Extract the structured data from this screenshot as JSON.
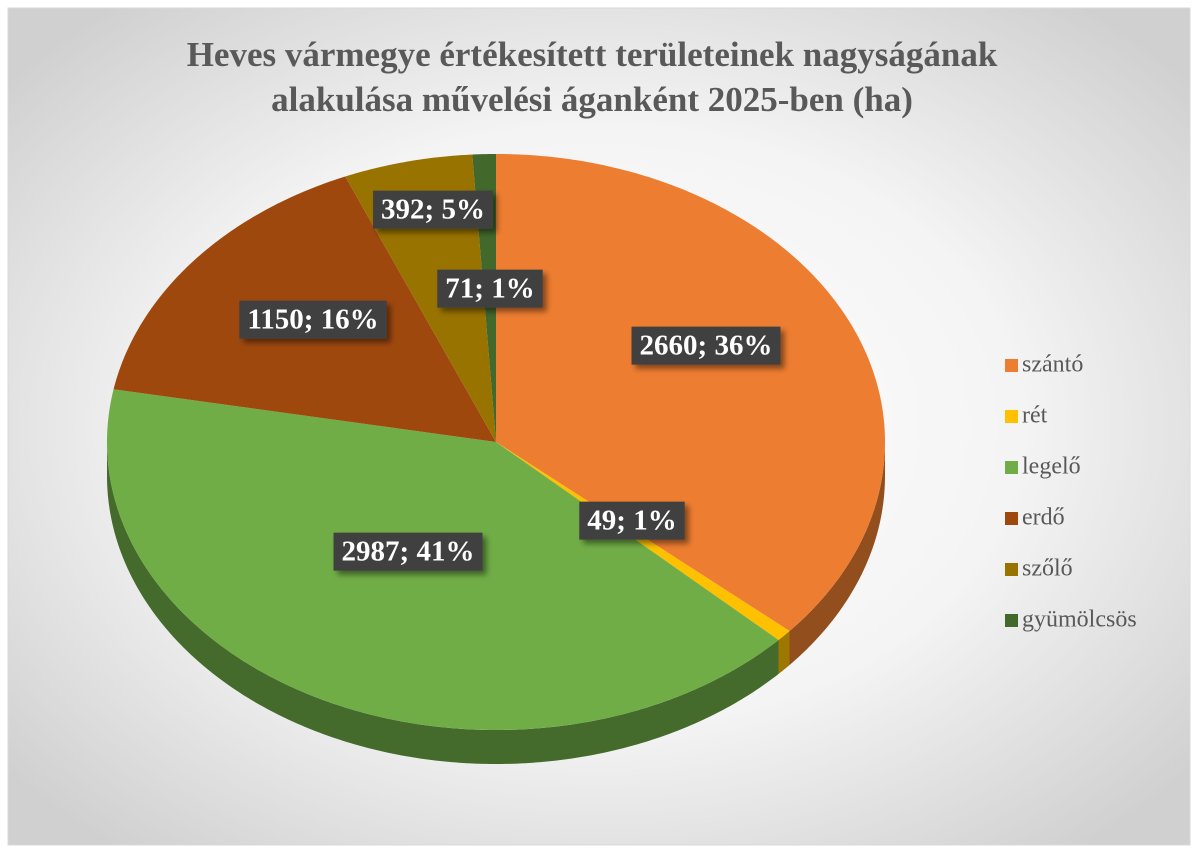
{
  "chart_data": {
    "type": "pie",
    "title": "Heves vármegye értékesített területeinek nagyságának alakulása művelési áganként 2025-ben (ha)",
    "categories": [
      "szántó",
      "rét",
      "legelő",
      "erdő",
      "szőlő",
      "gyümölcsös"
    ],
    "values": [
      2660,
      49,
      2987,
      1150,
      392,
      71
    ],
    "value_labels": [
      "2660; 36%",
      "49; 1%",
      "2987; 41%",
      "1150; 16%",
      "392; 5%",
      "71; 1%"
    ],
    "colors": [
      "#ED7D31",
      "#FFC000",
      "#70AD47",
      "#9E480E",
      "#997300",
      "#43682B"
    ],
    "legend": "right"
  }
}
